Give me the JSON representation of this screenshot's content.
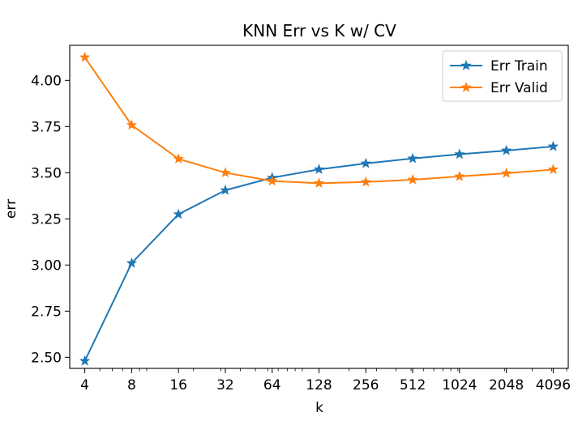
{
  "chart_data": {
    "type": "line",
    "title": "KNN Err vs K w/ CV",
    "xlabel": "k",
    "ylabel": "err",
    "x_scale": "log2",
    "x": [
      4,
      8,
      16,
      32,
      64,
      128,
      256,
      512,
      1024,
      2048,
      4096
    ],
    "xticks": [
      "4",
      "8",
      "16",
      "32",
      "64",
      "128",
      "256",
      "512",
      "1024",
      "2048",
      "4096"
    ],
    "ylim": [
      2.44,
      4.19
    ],
    "yticks": [
      "2.50",
      "2.75",
      "3.00",
      "3.25",
      "3.50",
      "3.75",
      "4.00"
    ],
    "grid": false,
    "legend_position": "top-right",
    "marker": "star",
    "series": [
      {
        "name": "Err Train",
        "color": "#1f77b4",
        "values": [
          2.48,
          3.01,
          3.275,
          3.405,
          3.473,
          3.518,
          3.55,
          3.577,
          3.6,
          3.62,
          3.642
        ]
      },
      {
        "name": "Err Valid",
        "color": "#ff7f0e",
        "values": [
          4.125,
          3.758,
          3.575,
          3.5,
          3.455,
          3.443,
          3.45,
          3.462,
          3.48,
          3.497,
          3.517
        ]
      }
    ]
  }
}
